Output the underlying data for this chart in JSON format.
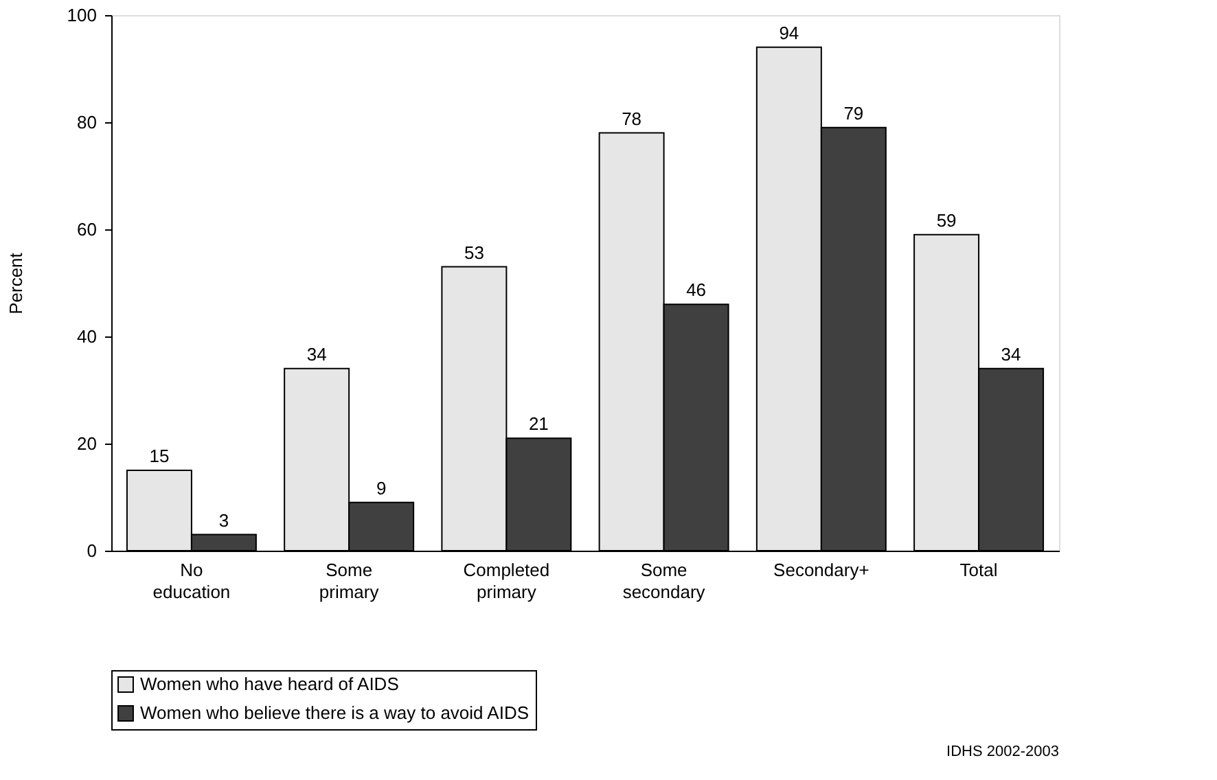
{
  "chart_data": {
    "type": "bar",
    "ylabel": "Percent",
    "categories": [
      "No education",
      "Some primary",
      "Completed primary",
      "Some secondary",
      "Secondary+",
      "Total"
    ],
    "series": [
      {
        "name": "Women who have heard of AIDS",
        "color": "#e6e6e6",
        "values": [
          15,
          34,
          53,
          78,
          94,
          59
        ]
      },
      {
        "name": "Women who believe there is a way to avoid AIDS",
        "color": "#404040",
        "values": [
          3,
          9,
          21,
          46,
          79,
          34
        ]
      }
    ],
    "ylim": [
      0,
      100
    ],
    "yticks": [
      0,
      20,
      40,
      60,
      80,
      100
    ],
    "grid": false,
    "legend": "bottom",
    "data_labels": true,
    "annotations": [
      "IDHS 2002-2003"
    ]
  }
}
